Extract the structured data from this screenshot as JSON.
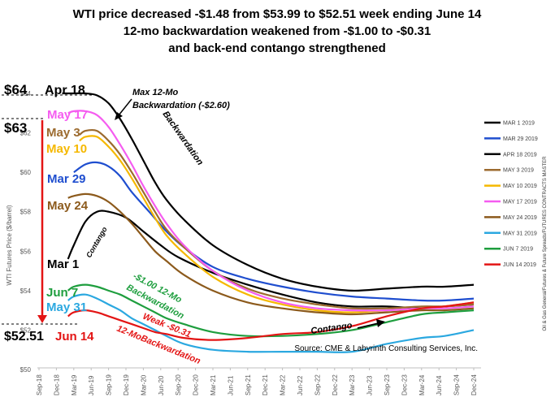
{
  "chart_data": {
    "type": "line",
    "title_lines": [
      "WTI price decreased -$1.48 from $53.99 to $52.51 week ending June 14",
      "12-mo backwardation weakened from -$1.00 to -$0.31",
      "and back-end contango strengthened"
    ],
    "ylabel": "WTI Futures  Price ($/barrel)",
    "ylim": [
      50,
      65
    ],
    "yticks": [
      "$50",
      "$52",
      "$54",
      "$56",
      "$58",
      "$60",
      "$62",
      "$64"
    ],
    "xticks": [
      "Sep-18",
      "Dec-18",
      "Mar-19",
      "Jun-19",
      "Sep-19",
      "Dec-19",
      "Mar-20",
      "Jun-20",
      "Sep-20",
      "Dec-20",
      "Mar-21",
      "Jun-21",
      "Sep-21",
      "Dec-21",
      "Mar-22",
      "Jun-22",
      "Sep-22",
      "Dec-22",
      "Mar-23",
      "Jun-23",
      "Sep-23",
      "Dec-23",
      "Mar-24",
      "Jun-24",
      "Sep-24",
      "Dec-24"
    ],
    "x_index_note": "x values are month indices from Sep-18 (0) to Dec-24 (75)",
    "grid": false,
    "legend_position": "right",
    "series": [
      {
        "name": "MAR 1 2019",
        "color": "#000000",
        "x": [
          5,
          6,
          8,
          10,
          12,
          15,
          18,
          21,
          24,
          30,
          36,
          42,
          48,
          54,
          60,
          66,
          70,
          75
        ],
        "y": [
          55.6,
          56.3,
          57.5,
          58.0,
          58.0,
          57.7,
          57.0,
          56.3,
          55.7,
          54.9,
          54.3,
          53.8,
          53.4,
          53.2,
          53.2,
          53.1,
          53.2,
          53.3
        ]
      },
      {
        "name": "MAR 29 2019",
        "color": "#1f4ecf",
        "x": [
          6,
          8,
          10,
          12,
          14,
          16,
          19,
          22,
          25,
          30,
          36,
          42,
          48,
          54,
          60,
          66,
          70,
          75
        ],
        "y": [
          60.0,
          60.4,
          60.5,
          60.3,
          59.8,
          59.0,
          58.0,
          57.0,
          56.2,
          55.2,
          54.6,
          54.2,
          53.9,
          53.7,
          53.6,
          53.5,
          53.5,
          53.6
        ]
      },
      {
        "name": "APR 18 2019",
        "color": "#000000",
        "x": [
          4,
          6,
          8,
          10,
          12,
          14,
          16,
          18,
          20,
          22,
          25,
          30,
          36,
          42,
          48,
          54,
          60,
          66,
          70,
          75
        ],
        "y": [
          64.0,
          64.0,
          64.0,
          63.9,
          63.5,
          62.7,
          61.7,
          60.6,
          59.5,
          58.6,
          57.6,
          56.3,
          55.3,
          54.6,
          54.2,
          54.0,
          54.1,
          54.2,
          54.2,
          54.3
        ]
      },
      {
        "name": "MAY 3 2019",
        "color": "#9c6b2f",
        "x": [
          7,
          8,
          10,
          12,
          14,
          16,
          18,
          20,
          22,
          25,
          30,
          36,
          42,
          48,
          54,
          60,
          66,
          70,
          75
        ],
        "y": [
          61.9,
          62.1,
          62.1,
          61.6,
          60.9,
          60.0,
          59.0,
          58.0,
          57.1,
          56.2,
          55.0,
          54.1,
          53.6,
          53.3,
          53.1,
          53.1,
          53.2,
          53.2,
          53.3
        ]
      },
      {
        "name": "MAY 10 2019",
        "color": "#f5b800",
        "x": [
          7,
          8,
          10,
          12,
          14,
          16,
          18,
          20,
          22,
          25,
          30,
          36,
          42,
          48,
          54,
          60,
          66,
          70,
          75
        ],
        "y": [
          61.6,
          61.8,
          61.8,
          61.3,
          60.6,
          59.7,
          58.7,
          57.7,
          56.8,
          55.9,
          54.7,
          53.8,
          53.3,
          53.0,
          52.9,
          53.0,
          53.1,
          53.2,
          53.4
        ]
      },
      {
        "name": "MAY 17 2019",
        "color": "#f55cf0",
        "x": [
          5,
          6,
          8,
          10,
          12,
          14,
          16,
          18,
          20,
          22,
          25,
          30,
          36,
          42,
          48,
          54,
          60,
          66,
          70,
          75
        ],
        "y": [
          63.0,
          63.1,
          63.1,
          62.9,
          62.3,
          61.4,
          60.4,
          59.3,
          58.3,
          57.4,
          56.3,
          55.0,
          54.0,
          53.4,
          53.1,
          53.0,
          53.0,
          53.1,
          53.1,
          53.2
        ]
      },
      {
        "name": "MAY 24 2019",
        "color": "#8c5a1c",
        "x": [
          5,
          6,
          8,
          10,
          12,
          14,
          16,
          18,
          20,
          22,
          25,
          30,
          36,
          42,
          48,
          54,
          60,
          66,
          70,
          75
        ],
        "y": [
          58.7,
          58.8,
          58.9,
          58.8,
          58.5,
          58.0,
          57.4,
          56.7,
          56.0,
          55.5,
          54.8,
          54.0,
          53.4,
          53.1,
          52.9,
          52.8,
          52.9,
          53.0,
          53.0,
          53.1
        ]
      },
      {
        "name": "MAY 31 2019",
        "color": "#2ba8e0",
        "x": [
          5,
          6,
          8,
          10,
          12,
          14,
          16,
          18,
          20,
          22,
          25,
          30,
          36,
          42,
          48,
          54,
          60,
          66,
          70,
          75
        ],
        "y": [
          53.5,
          53.7,
          53.8,
          53.6,
          53.3,
          53.0,
          52.6,
          52.3,
          52.0,
          51.7,
          51.3,
          51.0,
          50.9,
          50.9,
          50.9,
          50.9,
          51.3,
          51.6,
          51.7,
          52.0
        ]
      },
      {
        "name": "JUN 7 2019",
        "color": "#1e9e3e",
        "x": [
          5,
          6,
          8,
          10,
          12,
          14,
          16,
          18,
          20,
          22,
          25,
          30,
          36,
          42,
          48,
          54,
          60,
          66,
          70,
          75
        ],
        "y": [
          54.0,
          54.2,
          54.3,
          54.2,
          54.0,
          53.8,
          53.5,
          53.2,
          52.9,
          52.6,
          52.3,
          51.9,
          51.7,
          51.7,
          51.8,
          52.0,
          52.4,
          52.8,
          52.9,
          53.0
        ]
      },
      {
        "name": "JUN 14 2019",
        "color": "#e31515",
        "x": [
          5,
          6,
          8,
          10,
          12,
          14,
          16,
          18,
          20,
          22,
          25,
          30,
          36,
          42,
          48,
          54,
          60,
          66,
          70,
          75
        ],
        "y": [
          52.7,
          52.9,
          53.0,
          52.9,
          52.7,
          52.5,
          52.3,
          52.1,
          51.9,
          51.8,
          51.6,
          51.5,
          51.6,
          51.8,
          51.9,
          52.2,
          52.7,
          53.1,
          53.2,
          53.4
        ]
      }
    ],
    "annotations": {
      "price_64": "$64",
      "apr18": "Apr 18",
      "max_backwardation": [
        "Max 12-Mo",
        "Backwardation (-$2.60)"
      ],
      "may17": "May 17",
      "price_63": "$63",
      "may3": "May 3",
      "may10": "May 10",
      "backwardation_curve": "Backwardation",
      "mar29": "Mar 29",
      "may24": "May 24",
      "contango_curve": "Contango",
      "mar1": "Mar 1",
      "green_note": [
        "-$1.00 12-Mo",
        "Backwardation"
      ],
      "jun7": "Jun 7",
      "may31": "May 31",
      "price_5251": "$52.51",
      "jun14": "Jun 14",
      "red_note": [
        "Weak -$0.31",
        "12-MoBackwardation"
      ],
      "contango_right": "Contango",
      "source": "Source: CME & Labyrinth Consulting Services, Inc.",
      "side_text": "Oil & Gas General/Futures & Future Spreads/FUTURES CONTRACTS MASTER"
    }
  }
}
